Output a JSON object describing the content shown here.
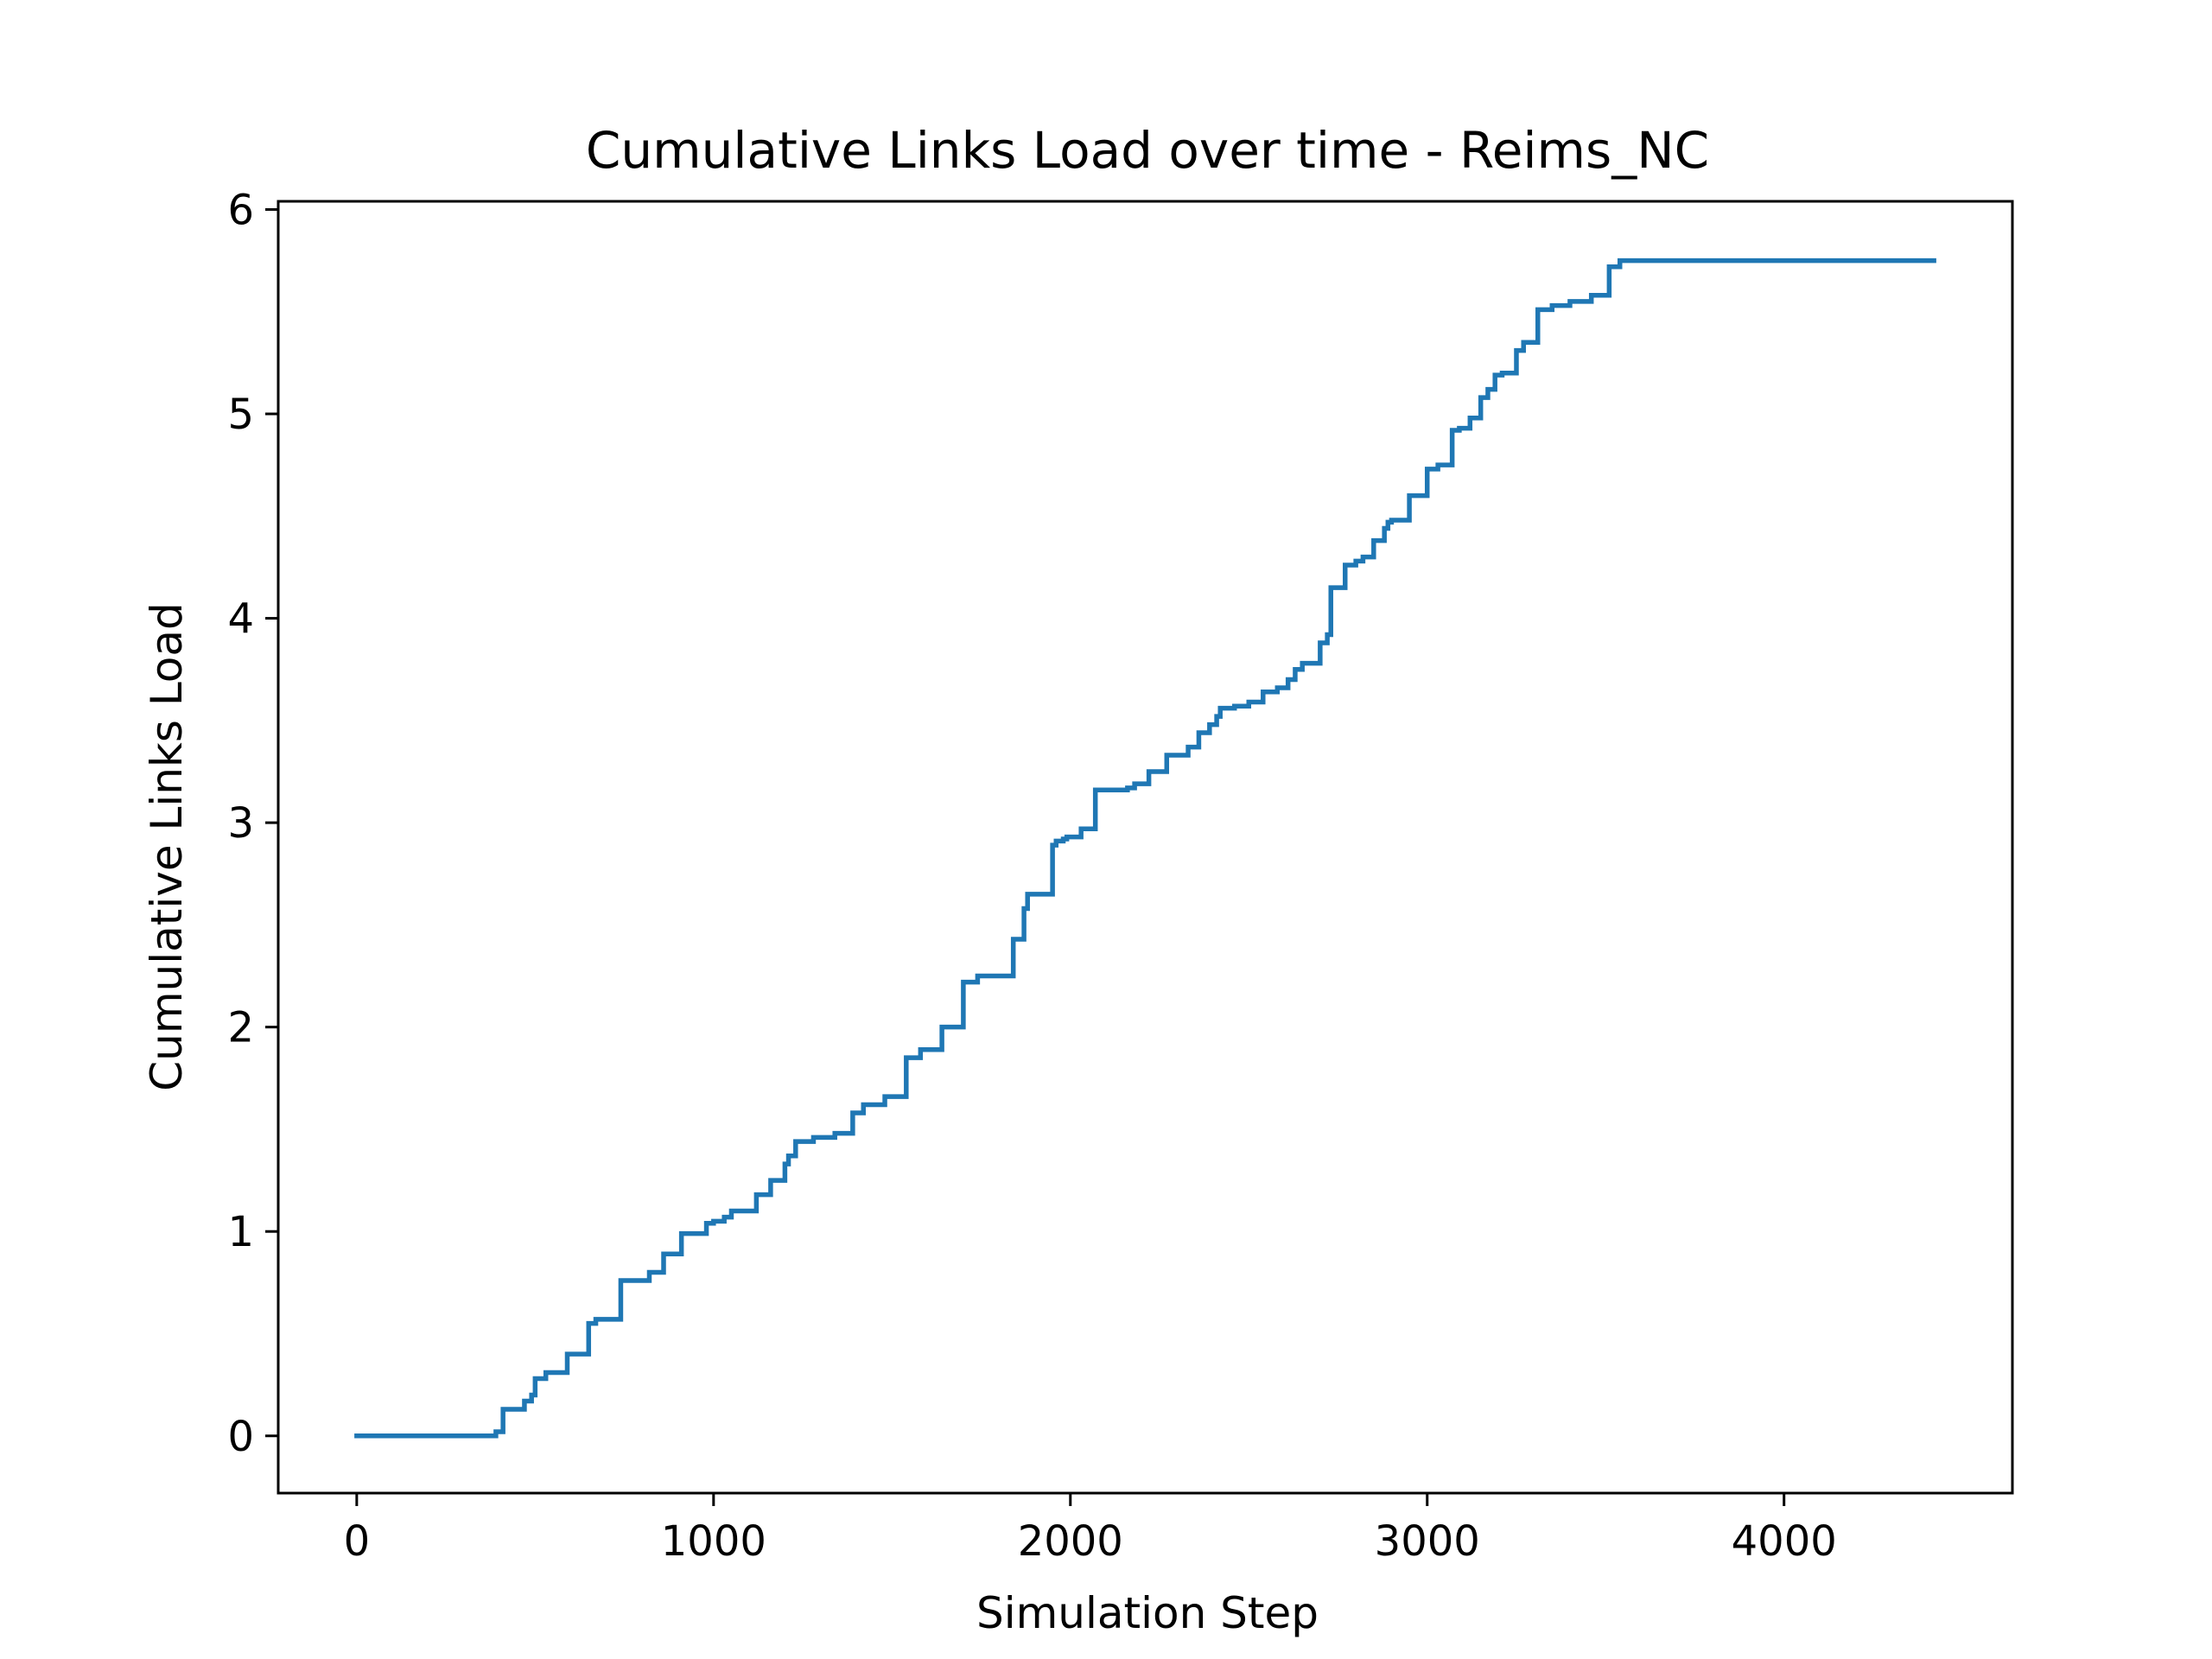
{
  "chart_data": {
    "type": "line",
    "title": "Cumulative Links Load over time - Reims_NC",
    "xlabel": "Simulation Step",
    "ylabel": "Cumulative Links Load",
    "xlim": [
      -220,
      4640
    ],
    "ylim": [
      -0.28,
      6.04
    ],
    "x_ticks": [
      0,
      1000,
      2000,
      3000,
      4000
    ],
    "x_tick_labels": [
      "0",
      "1000",
      "2000",
      "3000",
      "4000"
    ],
    "y_ticks": [
      0,
      1,
      2,
      3,
      4,
      5,
      6
    ],
    "y_tick_labels": [
      "0",
      "1",
      "2",
      "3",
      "4",
      "5",
      "6"
    ],
    "grid": false,
    "legend": "none",
    "series": [
      {
        "color": "#1f77b4",
        "step": "post",
        "x": [
          0,
          390,
          410,
          470,
          490,
          500,
          530,
          590,
          650,
          670,
          740,
          820,
          860,
          910,
          980,
          1000,
          1030,
          1050,
          1120,
          1160,
          1200,
          1210,
          1230,
          1280,
          1340,
          1390,
          1420,
          1480,
          1540,
          1580,
          1640,
          1700,
          1740,
          1840,
          1870,
          1880,
          1950,
          1960,
          1980,
          1990,
          2030,
          2070,
          2160,
          2180,
          2220,
          2270,
          2330,
          2360,
          2390,
          2410,
          2420,
          2460,
          2500,
          2540,
          2580,
          2610,
          2630,
          2650,
          2700,
          2720,
          2730,
          2770,
          2800,
          2820,
          2850,
          2880,
          2890,
          2900,
          2950,
          3000,
          3030,
          3070,
          3090,
          3120,
          3150,
          3170,
          3190,
          3210,
          3250,
          3270,
          3310,
          3350,
          3400,
          3460,
          3510,
          3540,
          3560,
          4420
        ],
        "y": [
          0,
          0.02,
          0.13,
          0.17,
          0.2,
          0.28,
          0.31,
          0.4,
          0.55,
          0.57,
          0.76,
          0.8,
          0.89,
          0.99,
          1.04,
          1.05,
          1.07,
          1.1,
          1.18,
          1.25,
          1.33,
          1.37,
          1.44,
          1.46,
          1.48,
          1.58,
          1.62,
          1.66,
          1.85,
          1.89,
          2,
          2.22,
          2.25,
          2.43,
          2.58,
          2.65,
          2.89,
          2.91,
          2.92,
          2.93,
          2.97,
          3.16,
          3.17,
          3.19,
          3.25,
          3.33,
          3.37,
          3.44,
          3.48,
          3.52,
          3.56,
          3.57,
          3.59,
          3.64,
          3.66,
          3.7,
          3.75,
          3.78,
          3.88,
          3.92,
          4.15,
          4.26,
          4.28,
          4.3,
          4.38,
          4.44,
          4.47,
          4.48,
          4.6,
          4.73,
          4.75,
          4.92,
          4.93,
          4.98,
          5.08,
          5.12,
          5.19,
          5.2,
          5.31,
          5.35,
          5.51,
          5.53,
          5.55,
          5.58,
          5.72,
          5.75,
          5.75,
          5.75
        ]
      }
    ]
  }
}
